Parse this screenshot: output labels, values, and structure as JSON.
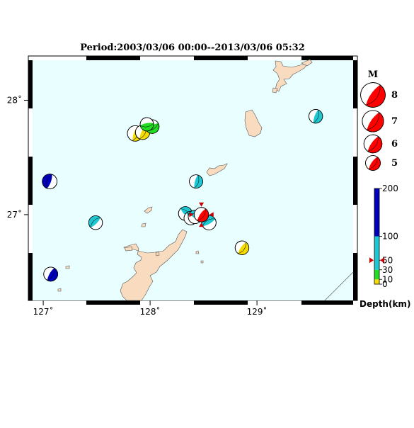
{
  "title": "Period:2003/03/06 00:00--2013/03/06 05:32",
  "colors": {
    "sea": "#e9ffff",
    "land": "#f9dcc0",
    "coast": "#555555",
    "highlight": "#ff0000",
    "marker": "#cc0000"
  },
  "map": {
    "lon_range": [
      126.9,
      129.9
    ],
    "lat_range": [
      26.25,
      28.35
    ],
    "x_ticks": [
      {
        "value": 127,
        "label": "127˚"
      },
      {
        "value": 128,
        "label": "128˚"
      },
      {
        "value": 129,
        "label": "129˚"
      }
    ],
    "y_ticks": [
      {
        "value": 28,
        "label": "28˚"
      },
      {
        "value": 27,
        "label": "27˚"
      }
    ]
  },
  "events": [
    {
      "lon": 127.06,
      "lat": 27.29,
      "mag": 5.6,
      "color": "#0000bb"
    },
    {
      "lon": 127.07,
      "lat": 26.48,
      "mag": 5.4,
      "color": "#0000bb"
    },
    {
      "lon": 127.49,
      "lat": 26.93,
      "mag": 5.3,
      "color": "#1ec8d2"
    },
    {
      "lon": 127.86,
      "lat": 27.71,
      "mag": 5.8,
      "color": "#f5dc00"
    },
    {
      "lon": 127.93,
      "lat": 27.72,
      "mag": 5.5,
      "color": "#f5dc00"
    },
    {
      "lon": 128.02,
      "lat": 27.77,
      "mag": 5.3,
      "color": "#22dd22"
    },
    {
      "lon": 127.97,
      "lat": 27.79,
      "mag": 5.2,
      "color": "#22dd22"
    },
    {
      "lon": 128.43,
      "lat": 27.29,
      "mag": 5.2,
      "color": "#1ec8d2"
    },
    {
      "lon": 128.33,
      "lat": 27.01,
      "mag": 5.3,
      "color": "#1ec8d2"
    },
    {
      "lon": 128.38,
      "lat": 26.97,
      "mag": 5.2,
      "color": "#1ec8d2"
    },
    {
      "lon": 128.42,
      "lat": 26.98,
      "mag": 5.2,
      "color": "#1ec8d2"
    },
    {
      "lon": 128.55,
      "lat": 26.93,
      "mag": 5.5,
      "color": "#1ec8d2"
    },
    {
      "lon": 128.86,
      "lat": 26.71,
      "mag": 5.3,
      "color": "#f5dc00"
    },
    {
      "lon": 129.55,
      "lat": 27.86,
      "mag": 5.3,
      "color": "#1ec8d2"
    }
  ],
  "main_event": {
    "lon": 128.48,
    "lat": 27.0,
    "mag": 5.5
  },
  "magnitude_legend": {
    "title": "M",
    "items": [
      {
        "mag": 8,
        "label": "8"
      },
      {
        "mag": 7,
        "label": "7"
      },
      {
        "mag": 6,
        "label": "6"
      },
      {
        "mag": 5,
        "label": "5"
      }
    ]
  },
  "depth_scale": {
    "label": "Depth(km)",
    "max": 200,
    "marker_depth": 50,
    "ticks": [
      {
        "value": 200,
        "label": "200"
      },
      {
        "value": 100,
        "label": "100"
      },
      {
        "value": 50,
        "label": "50"
      },
      {
        "value": 30,
        "label": "30"
      },
      {
        "value": 10,
        "label": "10"
      },
      {
        "value": 0,
        "label": "0"
      }
    ],
    "bands": [
      {
        "from": 0,
        "to": 10,
        "color": "#f5dc00"
      },
      {
        "from": 10,
        "to": 30,
        "color": "#22dd22"
      },
      {
        "from": 30,
        "to": 100,
        "color": "#1ec8d2"
      },
      {
        "from": 100,
        "to": 200,
        "color": "#0000bb"
      }
    ]
  }
}
